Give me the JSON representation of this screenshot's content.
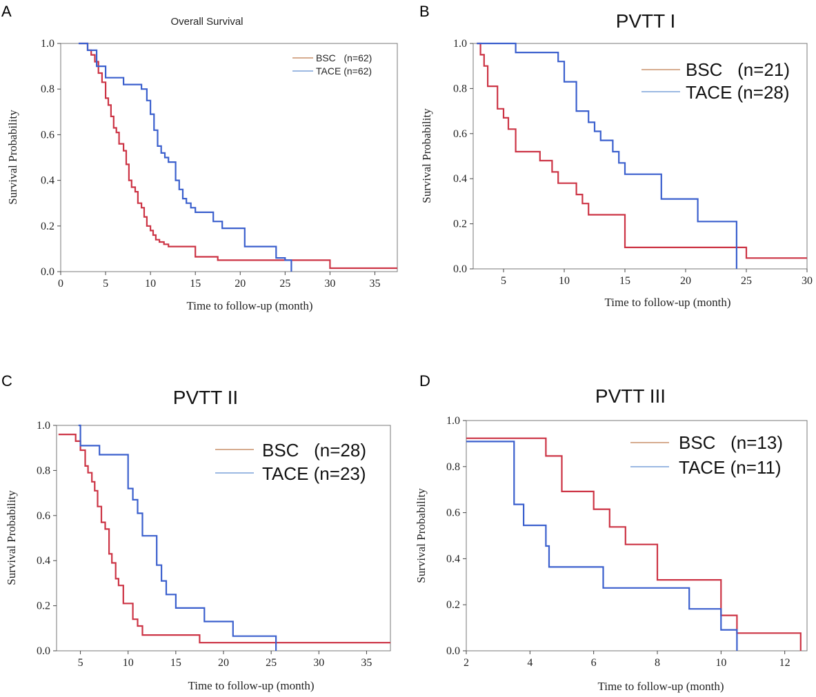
{
  "colors": {
    "bsc": "#cc3344",
    "tace": "#3a5fcd",
    "bsc_legend": "#c8906a",
    "tace_legend": "#7aa0d8"
  },
  "chart_data": [
    {
      "panel": "A",
      "type": "line",
      "step": true,
      "title": "Overall Survival",
      "xlabel": "Time to follow-up (month)",
      "ylabel": "Survival Probability",
      "xlim": [
        0,
        37.5
      ],
      "ylim": [
        0,
        1
      ],
      "xticks": [
        0,
        5,
        10,
        15,
        20,
        25,
        30,
        35
      ],
      "yticks": [
        0.0,
        0.2,
        0.4,
        0.6,
        0.8,
        1.0
      ],
      "xtick_labels": [
        "0",
        "5",
        "10",
        "15",
        "20",
        "25",
        "30",
        "35"
      ],
      "ytick_labels": [
        "0.0",
        "0.2",
        "0.4",
        "0.6",
        "0.8",
        "1.0"
      ],
      "legend_position": "top-right",
      "series": [
        {
          "name": "BSC",
          "legend": "BSC   (n=62)",
          "color_key": "bsc",
          "x": [
            2,
            3,
            3.4,
            3.8,
            4.2,
            4.6,
            5,
            5.3,
            5.6,
            5.9,
            6.2,
            6.5,
            7,
            7.3,
            7.6,
            7.9,
            8.3,
            8.6,
            9,
            9.3,
            9.6,
            10,
            10.3,
            10.6,
            11,
            11.5,
            12,
            13,
            15,
            17.5,
            30,
            37.5
          ],
          "y": [
            1.0,
            0.97,
            0.95,
            0.92,
            0.87,
            0.83,
            0.76,
            0.73,
            0.68,
            0.63,
            0.61,
            0.56,
            0.53,
            0.47,
            0.4,
            0.37,
            0.35,
            0.3,
            0.28,
            0.24,
            0.2,
            0.18,
            0.16,
            0.14,
            0.13,
            0.12,
            0.11,
            0.11,
            0.065,
            0.05,
            0.015,
            0.015
          ]
        },
        {
          "name": "TACE",
          "legend": "TACE (n=62)",
          "color_key": "tace",
          "x": [
            2,
            3,
            4,
            5,
            7,
            9,
            9.6,
            10,
            10.4,
            10.8,
            11.2,
            11.6,
            12,
            12.8,
            13.2,
            13.6,
            14,
            14.5,
            15,
            17,
            18,
            20.5,
            24,
            25,
            25.7
          ],
          "y": [
            1.0,
            0.97,
            0.9,
            0.85,
            0.82,
            0.8,
            0.75,
            0.69,
            0.62,
            0.55,
            0.52,
            0.5,
            0.48,
            0.4,
            0.36,
            0.32,
            0.3,
            0.28,
            0.26,
            0.22,
            0.19,
            0.11,
            0.06,
            0.05,
            0.0
          ]
        }
      ]
    },
    {
      "panel": "B",
      "type": "line",
      "step": true,
      "title": "PVTT I",
      "xlabel": "Time to follow-up  (month)",
      "ylabel": "Survival Probability",
      "xlim": [
        2.5,
        30
      ],
      "ylim": [
        0,
        1
      ],
      "xticks": [
        5,
        10,
        15,
        20,
        25,
        30
      ],
      "yticks": [
        0.0,
        0.2,
        0.4,
        0.6,
        0.8,
        1.0
      ],
      "xtick_labels": [
        "5",
        "10",
        "15",
        "20",
        "25",
        "30"
      ],
      "ytick_labels": [
        "0.0",
        "0.2",
        "0.4",
        "0.6",
        "0.8",
        "1.0"
      ],
      "legend_position": "top-right",
      "series": [
        {
          "name": "BSC",
          "legend": "BSC   (n=21)",
          "color_key": "bsc",
          "x": [
            2.8,
            3.1,
            3.4,
            3.7,
            4.5,
            5,
            5.4,
            6,
            8,
            9,
            9.5,
            11,
            11.5,
            12,
            15,
            25,
            30
          ],
          "y": [
            1.0,
            0.95,
            0.9,
            0.81,
            0.71,
            0.67,
            0.62,
            0.52,
            0.48,
            0.43,
            0.38,
            0.33,
            0.29,
            0.24,
            0.095,
            0.048,
            0.048
          ]
        },
        {
          "name": "TACE",
          "legend": "TACE (n=28)",
          "color_key": "tace",
          "x": [
            2.8,
            6,
            9.5,
            10,
            11,
            12,
            12.5,
            13,
            14,
            14.5,
            15,
            18,
            21,
            24.2
          ],
          "y": [
            1.0,
            0.96,
            0.92,
            0.83,
            0.7,
            0.65,
            0.61,
            0.57,
            0.52,
            0.47,
            0.42,
            0.31,
            0.21,
            0.0
          ]
        }
      ]
    },
    {
      "panel": "C",
      "type": "line",
      "step": true,
      "title": "PVTT II",
      "xlabel": "Time to follow-up (month)",
      "ylabel": "Survival Probability",
      "xlim": [
        2.5,
        37.5
      ],
      "ylim": [
        0,
        1
      ],
      "xticks": [
        5,
        10,
        15,
        20,
        25,
        30,
        35
      ],
      "yticks": [
        0.0,
        0.2,
        0.4,
        0.6,
        0.8,
        1.0
      ],
      "xtick_labels": [
        "5",
        "10",
        "15",
        "20",
        "25",
        "30",
        "35"
      ],
      "ytick_labels": [
        "0.0",
        "0.2",
        "0.4",
        "0.6",
        "0.8",
        "1.0"
      ],
      "legend_position": "top-right",
      "series": [
        {
          "name": "BSC",
          "legend": "BSC   (n=28)",
          "color_key": "bsc",
          "x": [
            2.7,
            4.5,
            5,
            5.5,
            5.8,
            6.2,
            6.5,
            6.8,
            7.2,
            7.6,
            8,
            8.3,
            8.7,
            9,
            9.5,
            10.5,
            11,
            11.5,
            17.5,
            37.5
          ],
          "y": [
            0.96,
            0.93,
            0.89,
            0.82,
            0.79,
            0.75,
            0.71,
            0.64,
            0.57,
            0.54,
            0.43,
            0.39,
            0.32,
            0.29,
            0.21,
            0.14,
            0.11,
            0.07,
            0.036,
            0.036
          ]
        },
        {
          "name": "TACE",
          "legend": "TACE (n=23)",
          "color_key": "tace",
          "x": [
            4.8,
            5,
            7,
            9.5,
            10,
            10.5,
            11,
            11.5,
            13,
            13.5,
            14,
            15,
            18,
            21,
            25.5
          ],
          "y": [
            1.0,
            0.91,
            0.87,
            0.87,
            0.72,
            0.67,
            0.61,
            0.51,
            0.38,
            0.31,
            0.25,
            0.19,
            0.13,
            0.065,
            0.0
          ]
        }
      ]
    },
    {
      "panel": "D",
      "type": "line",
      "step": true,
      "title": "PVTT III",
      "xlabel": "Time to follow-up (month)",
      "ylabel": "Survival Probability",
      "xlim": [
        2,
        12.7
      ],
      "ylim": [
        0,
        1
      ],
      "xticks": [
        2,
        4,
        6,
        8,
        10,
        12
      ],
      "yticks": [
        0.0,
        0.2,
        0.4,
        0.6,
        0.8,
        1.0
      ],
      "xtick_labels": [
        "2",
        "4",
        "6",
        "8",
        "10",
        "12"
      ],
      "ytick_labels": [
        "0.0",
        "0.2",
        "0.4",
        "0.6",
        "0.8",
        "1.0"
      ],
      "legend_position": "top-right",
      "series": [
        {
          "name": "BSC",
          "legend": "BSC   (n=13)",
          "color_key": "bsc",
          "x": [
            2,
            4.5,
            5,
            6,
            6.5,
            7,
            8,
            10,
            10.5,
            12.5
          ],
          "y": [
            0.923,
            0.846,
            0.692,
            0.615,
            0.538,
            0.462,
            0.308,
            0.154,
            0.077,
            0.0
          ]
        },
        {
          "name": "TACE",
          "legend": "TACE (n=11)",
          "color_key": "tace",
          "x": [
            2,
            3.5,
            3.8,
            4.5,
            4.6,
            6.3,
            9,
            10,
            10.5
          ],
          "y": [
            0.909,
            0.636,
            0.545,
            0.455,
            0.364,
            0.273,
            0.182,
            0.091,
            0.0
          ]
        }
      ]
    }
  ]
}
